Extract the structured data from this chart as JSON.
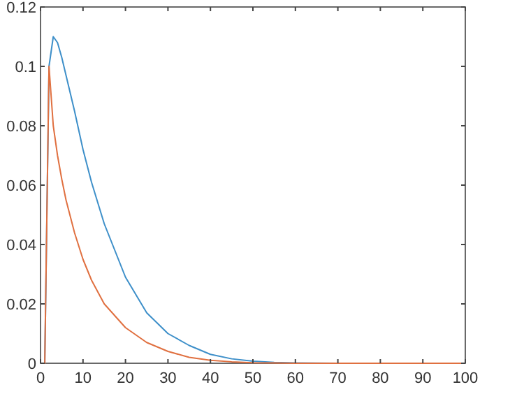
{
  "chart_data": {
    "type": "line",
    "xlim": [
      0,
      100
    ],
    "ylim": [
      0,
      0.12
    ],
    "xticks": [
      0,
      10,
      20,
      30,
      40,
      50,
      60,
      70,
      80,
      90,
      100
    ],
    "yticks": [
      0,
      0.02,
      0.04,
      0.06,
      0.08,
      0.1,
      0.12
    ],
    "grid": false,
    "marker": "none",
    "line_style": "solid",
    "series": [
      {
        "color": "#3d8fc9",
        "x": [
          0,
          1,
          2,
          3,
          4,
          5,
          6,
          8,
          10,
          12,
          15,
          20,
          25,
          30,
          35,
          40,
          45,
          50,
          55,
          60,
          70
        ],
        "values": [
          0,
          0,
          0.1,
          0.11,
          0.108,
          0.103,
          0.097,
          0.085,
          0.072,
          0.061,
          0.047,
          0.029,
          0.017,
          0.01,
          0.006,
          0.003,
          0.0015,
          0.0007,
          0.0003,
          0.0001,
          0
        ]
      },
      {
        "color": "#e07040",
        "x": [
          0,
          1,
          2,
          3,
          4,
          5,
          6,
          8,
          10,
          12,
          15,
          20,
          25,
          30,
          35,
          40,
          45,
          50,
          55,
          60,
          70,
          80,
          90,
          100
        ],
        "values": [
          0,
          0,
          0.1,
          0.08,
          0.07,
          0.062,
          0.055,
          0.044,
          0.035,
          0.028,
          0.02,
          0.012,
          0.007,
          0.004,
          0.002,
          0.001,
          0.0005,
          0.0002,
          0.0001,
          0,
          0,
          0,
          0,
          0
        ]
      }
    ]
  }
}
